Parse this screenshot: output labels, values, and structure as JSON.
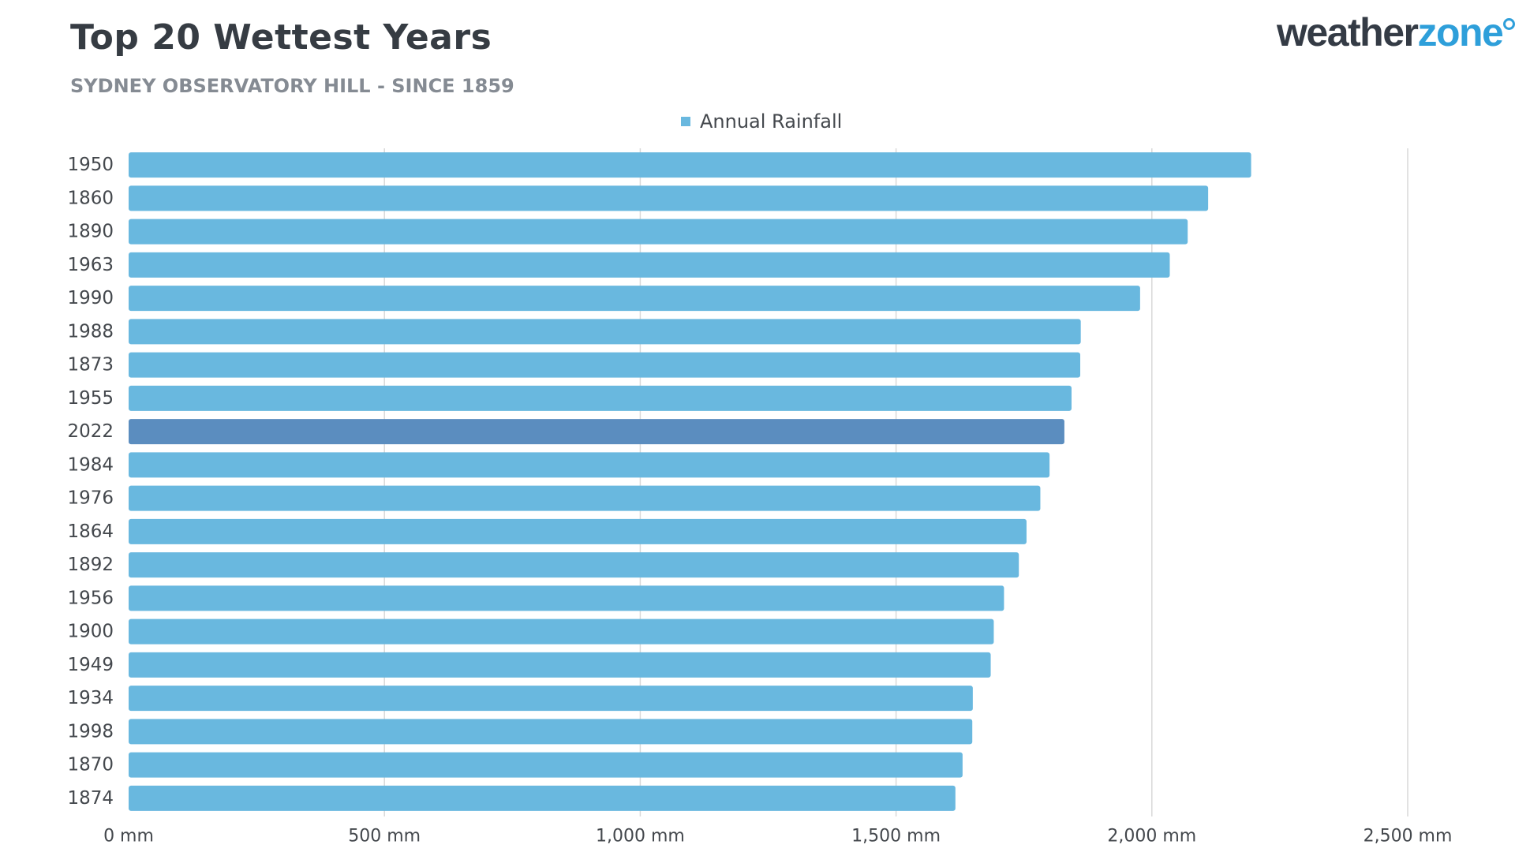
{
  "title": "Top 20 Wettest Years",
  "subtitle": "SYDNEY OBSERVATORY HILL - SINCE 1859",
  "logo": {
    "part1": "weather",
    "part2": "zone"
  },
  "colors": {
    "bar": "#69b8df",
    "highlight": "#5b8dbf",
    "grid": "#d9d9d9",
    "text": "#44484d",
    "logo_dark": "#343b45",
    "logo_blue": "#2e9fda"
  },
  "chart_data": {
    "type": "bar",
    "orientation": "horizontal",
    "categories": [
      "1950",
      "1860",
      "1890",
      "1963",
      "1990",
      "1988",
      "1873",
      "1955",
      "2022",
      "1984",
      "1976",
      "1864",
      "1892",
      "1956",
      "1900",
      "1949",
      "1934",
      "1998",
      "1870",
      "1874"
    ],
    "series": [
      {
        "name": "Annual Rainfall",
        "values": [
          2194,
          2110,
          2070,
          2035,
          1977,
          1861,
          1860,
          1843,
          1829,
          1800,
          1782,
          1755,
          1740,
          1711,
          1691,
          1685,
          1650,
          1649,
          1630,
          1616
        ]
      }
    ],
    "highlight_category": "2022",
    "xlim": [
      0,
      2500
    ],
    "x_ticks": [
      0,
      500,
      1000,
      1500,
      2000,
      2500
    ],
    "x_tick_labels": [
      "0 mm",
      "500 mm",
      "1,000 mm",
      "1,500 mm",
      "2,000 mm",
      "2,500 mm"
    ],
    "grid": true,
    "legend_position": "top"
  }
}
